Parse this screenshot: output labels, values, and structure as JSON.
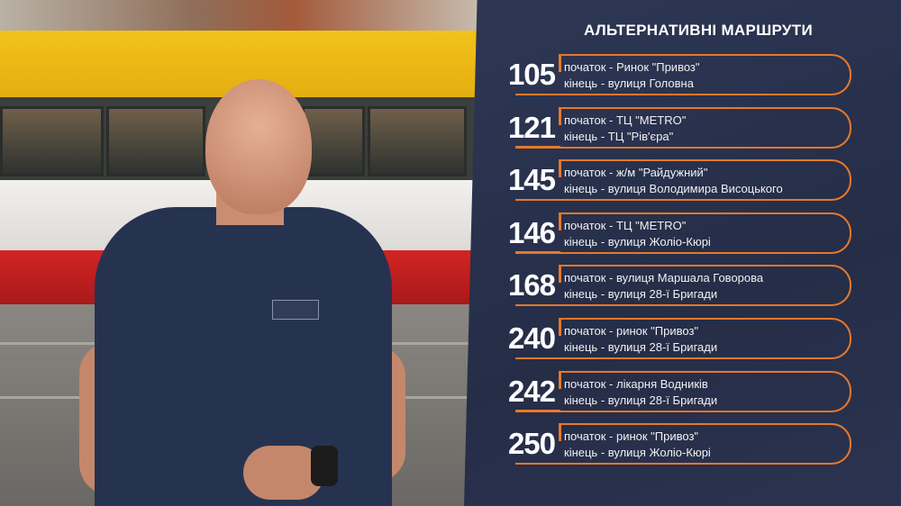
{
  "title": "АЛЬТЕРНАТИВНІ МАРШРУТИ",
  "accent_color": "#e8782a",
  "panel_color": "#2a3350",
  "routes": [
    {
      "number": "105",
      "start": "початок - Ринок \"Привоз\"",
      "end": "кінець - вулиця Головна"
    },
    {
      "number": "121",
      "start": "початок - ТЦ \"METRO\"",
      "end": "кінець - ТЦ \"Рів'єра\""
    },
    {
      "number": "145",
      "start": "початок - ж/м \"Райдужний\"",
      "end": "кінець - вулиця Володимира Висоцького"
    },
    {
      "number": "146",
      "start": "початок - ТЦ \"METRO\"",
      "end": "кінець - вулиця Жоліо-Кюрі"
    },
    {
      "number": "168",
      "start": "початок - вулиця Маршала Говорова",
      "end": "кінець - вулиця 28-ї Бригади"
    },
    {
      "number": "240",
      "start": "початок - ринок \"Привоз\"",
      "end": "кінець - вулиця 28-ї Бригади"
    },
    {
      "number": "242",
      "start": "початок - лікарня Водників",
      "end": "кінець - вулиця 28-ї Бригади"
    },
    {
      "number": "250",
      "start": "початок - ринок \"Привоз\"",
      "end": "кінець - вулиця Жоліо-Кюрі"
    }
  ]
}
